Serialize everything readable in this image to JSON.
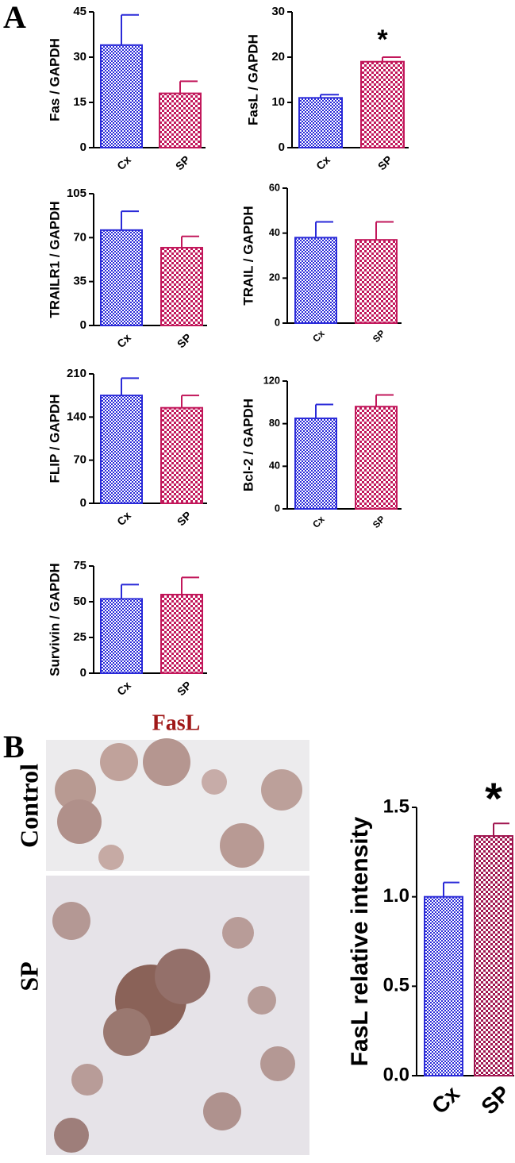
{
  "figure": {
    "panel_a": "A",
    "panel_b": "B",
    "stain": "FasL",
    "rows": [
      "Control",
      "SP"
    ]
  },
  "chart_data": [
    {
      "type": "bar",
      "y_label": "Fas / GAPDH",
      "categories": [
        "Cx",
        "SP"
      ],
      "values": [
        34,
        18
      ],
      "errors": [
        10,
        4
      ],
      "colors": [
        "#2a2ad8",
        "#c2185b"
      ],
      "ylim": [
        0,
        45
      ],
      "yticks": [
        0,
        15,
        30,
        45
      ]
    },
    {
      "type": "bar",
      "y_label": "FasL / GAPDH",
      "categories": [
        "Cx",
        "SP"
      ],
      "values": [
        11,
        19
      ],
      "errors": [
        0.7,
        1
      ],
      "colors": [
        "#2a2ad8",
        "#c2185b"
      ],
      "ylim": [
        0,
        30
      ],
      "yticks": [
        0,
        10,
        20,
        30
      ],
      "annotation": "*"
    },
    {
      "type": "bar",
      "y_label": "TRAILR1 / GAPDH",
      "categories": [
        "Cx",
        "SP"
      ],
      "values": [
        76,
        62
      ],
      "errors": [
        15,
        9
      ],
      "colors": [
        "#2a2ad8",
        "#c2185b"
      ],
      "ylim": [
        0,
        105
      ],
      "yticks": [
        0,
        35,
        70,
        105
      ]
    },
    {
      "type": "bar",
      "y_label": "TRAIL / GAPDH",
      "categories": [
        "Cx",
        "SP"
      ],
      "values": [
        38,
        37
      ],
      "errors": [
        7,
        8
      ],
      "colors": [
        "#2a2ad8",
        "#c2185b"
      ],
      "ylim": [
        0,
        60
      ],
      "yticks": [
        0,
        20,
        40,
        60
      ]
    },
    {
      "type": "bar",
      "y_label": "FLIP / GAPDH",
      "categories": [
        "Cx",
        "SP"
      ],
      "values": [
        175,
        155
      ],
      "errors": [
        28,
        20
      ],
      "colors": [
        "#2a2ad8",
        "#c2185b"
      ],
      "ylim": [
        0,
        210
      ],
      "yticks": [
        0,
        70,
        140,
        210
      ]
    },
    {
      "type": "bar",
      "y_label": "Bcl-2 / GAPDH",
      "categories": [
        "Cx",
        "SP"
      ],
      "values": [
        85,
        96
      ],
      "errors": [
        13,
        11
      ],
      "colors": [
        "#2a2ad8",
        "#c2185b"
      ],
      "ylim": [
        0,
        120
      ],
      "yticks": [
        0,
        40,
        80,
        120
      ]
    },
    {
      "type": "bar",
      "y_label": "Survivin / GAPDH",
      "categories": [
        "Cx",
        "SP"
      ],
      "values": [
        52,
        55
      ],
      "errors": [
        10,
        12
      ],
      "colors": [
        "#2a2ad8",
        "#c2185b"
      ],
      "ylim": [
        0,
        75
      ],
      "yticks": [
        0,
        25,
        50,
        75
      ]
    },
    {
      "type": "bar",
      "y_label": "FasL relative  intensity",
      "categories": [
        "Cx",
        "SP"
      ],
      "values": [
        1.0,
        1.34
      ],
      "errors": [
        0.08,
        0.07
      ],
      "colors": [
        "#2a2ad8",
        "#a0154f"
      ],
      "ylim": [
        0,
        1.5
      ],
      "yticks": [
        {
          "value": 0,
          "label": "0.0"
        },
        0.5,
        {
          "value": 1,
          "label": "1.0"
        },
        1.5
      ],
      "annotation": "*"
    }
  ]
}
